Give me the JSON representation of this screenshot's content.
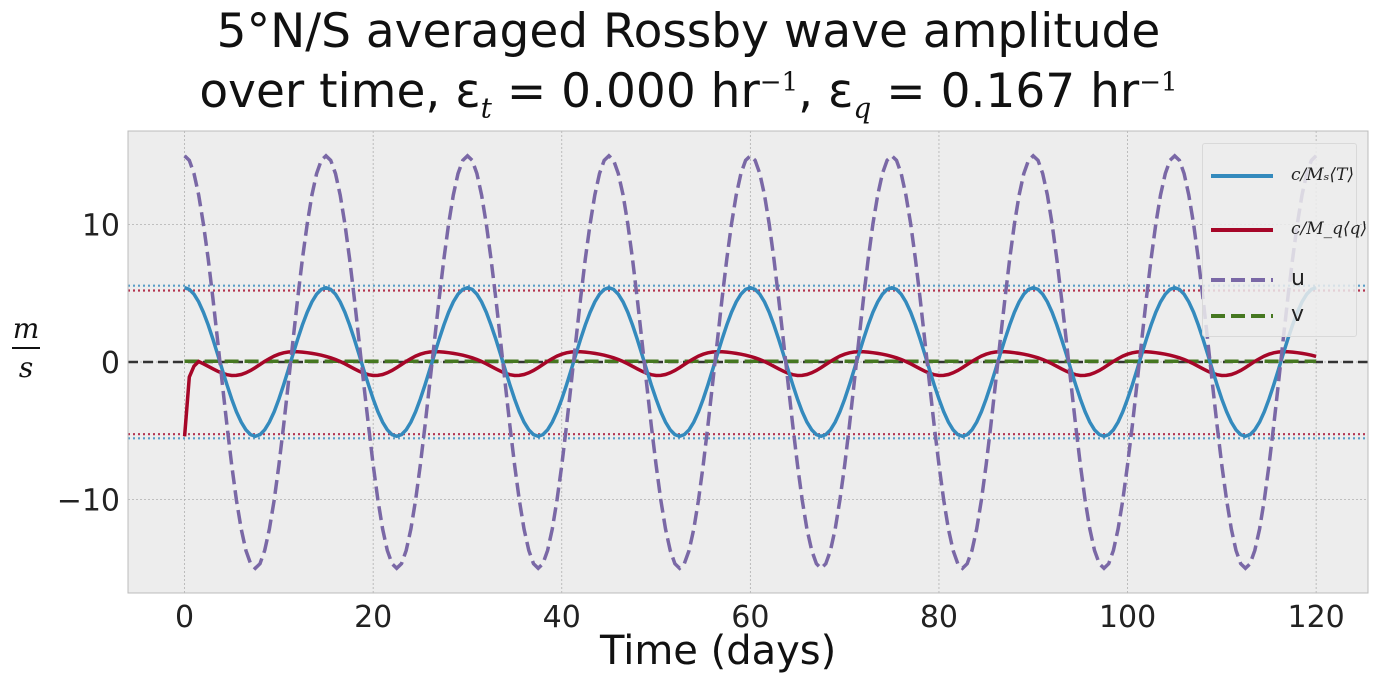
{
  "chart_data": {
    "type": "line",
    "title_line1": "5°N/S averaged Rossby wave amplitude",
    "title_line2": "over time, ε",
    "title_sub_t": "t",
    "title_part_t": " = 0.000 hr",
    "title_sup": "−1",
    "title_sep": ",  ε",
    "title_sub_q": "q",
    "title_part_q": " = 0.167 hr",
    "xlabel": "Time (days)",
    "ylabel_num": "m",
    "ylabel_den": "s",
    "xlim": [
      -6,
      125.5
    ],
    "ylim": [
      -16.8,
      16.8
    ],
    "xticks": [
      0,
      20,
      40,
      60,
      80,
      100,
      120
    ],
    "yticks": [
      -10,
      0,
      10
    ],
    "ytick_labels": [
      "−10",
      "0",
      "10"
    ],
    "grid": true,
    "legend_position": "top-right",
    "colors": {
      "T": "#348ABD",
      "q": "#A60628",
      "u": "#7A68A6",
      "v": "#467821",
      "zero_line": "#333333",
      "background": "#EDEDED"
    },
    "series": [
      {
        "name": "c/M_s ⟨T⟩",
        "key": "T",
        "style": "solid",
        "period_days": 15,
        "amplitude": 5.4,
        "phase": "cos"
      },
      {
        "name": "c/M_q ⟨q⟩",
        "key": "q",
        "style": "solid",
        "period_days": 15,
        "amplitude": 0.85,
        "start_value": -5.4
      },
      {
        "name": "u",
        "key": "u",
        "style": "dashed",
        "period_days": 15,
        "amplitude": 15.0,
        "phase": "cos"
      },
      {
        "name": "v",
        "key": "v",
        "style": "dashed",
        "constant": 0.05
      }
    ],
    "reference_lines": [
      5.4,
      -5.4,
      5.2,
      -5.2,
      0
    ],
    "x_range": [
      0,
      120
    ],
    "legend": {
      "T_label": "c/Mₛ⟨T⟩",
      "q_label": "c/M_q⟨q⟩",
      "u_label": "u",
      "v_label": "v"
    }
  }
}
